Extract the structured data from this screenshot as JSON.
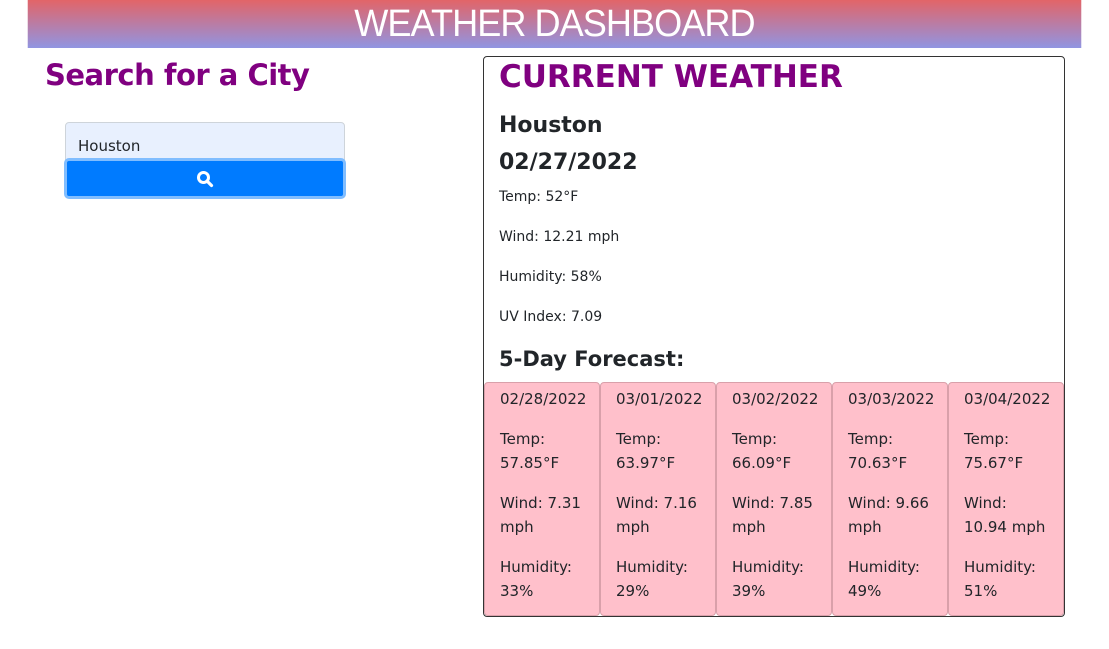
{
  "header": {
    "title": "WEATHER DASHBOARD"
  },
  "search": {
    "title": "Search for a City",
    "input_value": "Houston",
    "button_icon": "search-icon"
  },
  "current": {
    "title": "CURRENT WEATHER",
    "city": "Houston",
    "date": "02/27/2022",
    "temp": "Temp: 52°F",
    "wind": "Wind: 12.21 mph",
    "humidity": "Humidity: 58%",
    "uv": "UV Index: 7.09"
  },
  "forecast": {
    "title": "5-Day Forecast:",
    "days": [
      {
        "date": "02/28/2022",
        "temp": "Temp: 57.85°F",
        "wind": "Wind: 7.31 mph",
        "humidity": "Humidity: 33%"
      },
      {
        "date": "03/01/2022",
        "temp": "Temp: 63.97°F",
        "wind": "Wind: 7.16 mph",
        "humidity": "Humidity: 29%"
      },
      {
        "date": "03/02/2022",
        "temp": "Temp: 66.09°F",
        "wind": "Wind: 7.85 mph",
        "humidity": "Humidity: 39%"
      },
      {
        "date": "03/03/2022",
        "temp": "Temp: 70.63°F",
        "wind": "Wind: 9.66 mph",
        "humidity": "Humidity: 49%"
      },
      {
        "date": "03/04/2022",
        "temp": "Temp: 75.67°F",
        "wind": "Wind: 10.94 mph",
        "humidity": "Humidity: 51%"
      }
    ]
  },
  "colors": {
    "accent": "#800080",
    "button": "#007bff",
    "card": "#ffc0cb"
  }
}
